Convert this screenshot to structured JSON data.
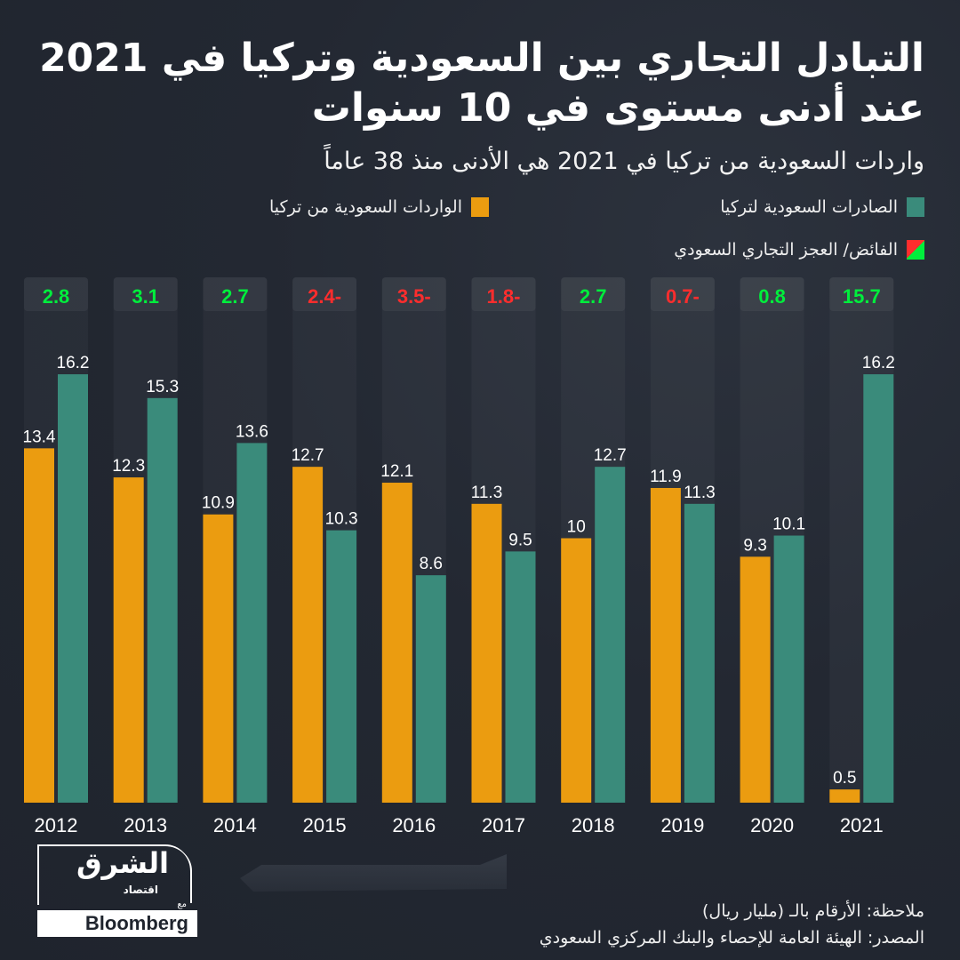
{
  "header": {
    "title_line1": "التبادل التجاري بين السعودية وتركيا في 2021",
    "title_line2": "عند أدنى مستوى في 10 سنوات",
    "subtitle": "واردات السعودية من تركيا في 2021 هي الأدنى منذ 38 عاماً"
  },
  "legend": {
    "exports": "الصادرات السعودية لتركيا",
    "imports": "الواردات السعودية من تركيا",
    "balance": "الفائض/ العجز التجاري السعودي"
  },
  "colors": {
    "exports": "#3a8b7b",
    "imports": "#eb9c10",
    "surplus": "#00ee3c",
    "deficit": "#ff2d2d",
    "background": "#232832"
  },
  "chart_data": {
    "type": "bar",
    "title": "التبادل التجاري بين السعودية وتركيا في 2021 عند أدنى مستوى في 10 سنوات",
    "xlabel": "",
    "ylabel": "مليار ريال",
    "ylim": [
      0,
      17
    ],
    "grid": false,
    "legend_position": "top-right",
    "categories": [
      "2012",
      "2013",
      "2014",
      "2015",
      "2016",
      "2017",
      "2018",
      "2019",
      "2020",
      "2021"
    ],
    "series": [
      {
        "name": "الواردات السعودية من تركيا",
        "values": [
          13.4,
          12.3,
          10.9,
          12.7,
          12.1,
          11.3,
          10,
          11.9,
          9.3,
          0.5
        ]
      },
      {
        "name": "الصادرات السعودية لتركيا",
        "values": [
          16.2,
          15.3,
          13.6,
          10.3,
          8.6,
          9.5,
          12.7,
          11.3,
          10.1,
          16.2
        ]
      }
    ],
    "balance": {
      "name": "الفائض/ العجز التجاري السعودي",
      "values": [
        2.8,
        3.1,
        2.7,
        -2.4,
        -3.5,
        -1.8,
        2.7,
        -0.7,
        0.8,
        15.7
      ]
    }
  },
  "footer": {
    "note": "ملاحظة: الأرقام بالـ (مليار ريال)",
    "source": "المصدر: الهيئة العامة للإحصاء والبنك المركزي السعودي"
  },
  "logo": {
    "brand_ar": "الشرق",
    "brand_sub": "اقتصاد",
    "with": "مع",
    "partner": "Bloomberg"
  }
}
